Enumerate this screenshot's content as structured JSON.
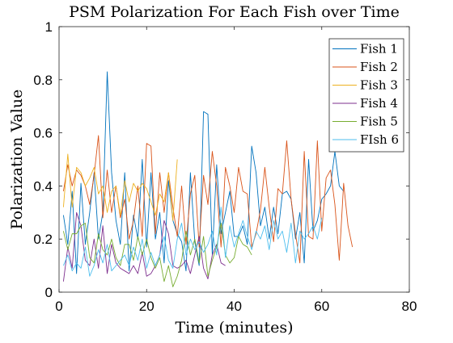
{
  "chart_data": {
    "type": "line",
    "title": "PSM Polarization For Each Fish over Time",
    "xlabel": "Time (minutes)",
    "ylabel": "Polarization Value",
    "xlim": [
      0,
      80
    ],
    "ylim": [
      0,
      1
    ],
    "xticks": [
      0,
      20,
      40,
      60,
      80
    ],
    "xtick_labels": [
      "0",
      "20",
      "40",
      "60",
      "80"
    ],
    "yticks": [
      0,
      0.2,
      0.4,
      0.6,
      0.8,
      1
    ],
    "ytick_labels": [
      "0",
      "0.2",
      "0.4",
      "0.6",
      "0.8",
      "1"
    ],
    "grid": false,
    "legend_position": "top-right",
    "series": [
      {
        "name": "Fish 1",
        "color": "#0072BD",
        "x": [
          1,
          2,
          3,
          4,
          5,
          6,
          7,
          8,
          9,
          10,
          11,
          12,
          13,
          14,
          15,
          16,
          17,
          18,
          19,
          20,
          21,
          22,
          23,
          24,
          25,
          26,
          27,
          28,
          29,
          30,
          31,
          32,
          33,
          34,
          35,
          36,
          37,
          38,
          39,
          40,
          41,
          42,
          43,
          44,
          45,
          46,
          47,
          48,
          49,
          50,
          51,
          52,
          53,
          54,
          55,
          56,
          57,
          58,
          59,
          60,
          61,
          62,
          63,
          64,
          65
        ],
        "values": [
          0.29,
          0.18,
          0.38,
          0.07,
          0.41,
          0.18,
          0.3,
          0.45,
          0.2,
          0.3,
          0.83,
          0.45,
          0.27,
          0.18,
          0.45,
          0.08,
          0.29,
          0.2,
          0.5,
          0.17,
          0.45,
          0.2,
          0.3,
          0.11,
          0.42,
          0.27,
          0.22,
          0.19,
          0.08,
          0.45,
          0.19,
          0.1,
          0.68,
          0.67,
          0.14,
          0.48,
          0.22,
          0.3,
          0.38,
          0.21,
          0.21,
          0.25,
          0.18,
          0.55,
          0.45,
          0.25,
          0.32,
          0.2,
          0.32,
          0.22,
          0.37,
          0.38,
          0.35,
          0.2,
          0.3,
          0.11,
          0.5,
          0.23,
          0.27,
          0.35,
          0.37,
          0.4,
          0.53,
          0.4,
          0.38
        ]
      },
      {
        "name": "Fish 2",
        "color": "#D95319",
        "x": [
          1,
          2,
          3,
          4,
          5,
          6,
          7,
          8,
          9,
          10,
          11,
          12,
          13,
          14,
          15,
          16,
          17,
          18,
          19,
          20,
          21,
          22,
          23,
          24,
          25,
          26,
          27,
          28,
          29,
          30,
          31,
          32,
          33,
          34,
          35,
          36,
          37,
          38,
          39,
          40,
          41,
          42,
          43,
          44,
          45,
          46,
          47,
          48,
          49,
          50,
          51,
          52,
          53,
          54,
          55,
          56,
          57,
          58,
          59,
          60,
          61,
          62,
          63,
          64,
          65,
          66,
          67
        ],
        "values": [
          0.38,
          0.48,
          0.4,
          0.46,
          0.44,
          0.4,
          0.33,
          0.44,
          0.59,
          0.28,
          0.46,
          0.3,
          0.4,
          0.28,
          0.35,
          0.2,
          0.27,
          0.4,
          0.21,
          0.56,
          0.55,
          0.22,
          0.45,
          0.3,
          0.45,
          0.32,
          0.21,
          0.4,
          0.18,
          0.37,
          0.44,
          0.17,
          0.44,
          0.33,
          0.53,
          0.4,
          0.17,
          0.47,
          0.4,
          0.3,
          0.47,
          0.38,
          0.37,
          0.17,
          0.22,
          0.31,
          0.47,
          0.32,
          0.19,
          0.39,
          0.37,
          0.57,
          0.35,
          0.22,
          0.11,
          0.53,
          0.21,
          0.2,
          0.57,
          0.23,
          0.43,
          0.46,
          0.33,
          0.12,
          0.41,
          0.25,
          0.17
        ]
      },
      {
        "name": "Fish 3",
        "color": "#EDB120",
        "x": [
          1,
          2,
          3,
          4,
          5,
          6,
          7,
          8,
          9,
          10,
          11,
          12,
          13,
          14,
          15,
          16,
          17,
          18,
          19,
          20,
          21,
          22,
          23,
          24,
          25,
          26,
          27
        ],
        "values": [
          0.32,
          0.52,
          0.32,
          0.47,
          0.45,
          0.4,
          0.43,
          0.47,
          0.37,
          0.4,
          0.3,
          0.38,
          0.4,
          0.29,
          0.42,
          0.34,
          0.41,
          0.38,
          0.41,
          0.39,
          0.34,
          0.29,
          0.37,
          0.34,
          0.45,
          0.27,
          0.5
        ]
      },
      {
        "name": "Fish 4",
        "color": "#7E2F8E",
        "x": [
          1,
          2,
          3,
          4,
          5,
          6,
          7,
          8,
          9,
          10,
          11,
          12,
          13,
          14,
          15,
          16,
          17,
          18,
          19,
          20,
          21,
          22,
          23,
          24,
          25,
          26,
          27,
          28,
          29,
          30,
          31,
          32,
          33,
          34,
          35,
          36,
          37,
          38
        ],
        "values": [
          0.04,
          0.17,
          0.09,
          0.3,
          0.25,
          0.12,
          0.1,
          0.2,
          0.09,
          0.25,
          0.07,
          0.18,
          0.11,
          0.09,
          0.08,
          0.07,
          0.1,
          0.07,
          0.15,
          0.06,
          0.07,
          0.1,
          0.14,
          0.27,
          0.22,
          0.1,
          0.09,
          0.1,
          0.12,
          0.07,
          0.14,
          0.21,
          0.09,
          0.05,
          0.14,
          0.18,
          0.11,
          0.1
        ]
      },
      {
        "name": "Fish 5",
        "color": "#77AC30",
        "x": [
          1,
          2,
          3,
          4,
          5,
          6,
          7,
          8,
          9,
          10,
          11,
          12,
          13,
          14,
          15,
          16,
          17,
          18,
          19,
          20,
          21,
          22,
          23,
          24,
          25,
          26,
          27,
          28,
          29,
          30,
          31,
          32,
          33,
          34,
          35,
          36,
          37,
          38,
          39,
          40,
          41,
          42,
          43,
          44
        ],
        "values": [
          0.23,
          0.16,
          0.22,
          0.22,
          0.25,
          0.26,
          0.13,
          0.11,
          0.22,
          0.16,
          0.14,
          0.2,
          0.13,
          0.1,
          0.18,
          0.18,
          0.12,
          0.21,
          0.14,
          0.2,
          0.13,
          0.09,
          0.13,
          0.04,
          0.1,
          0.02,
          0.06,
          0.12,
          0.23,
          0.14,
          0.2,
          0.11,
          0.21,
          0.06,
          0.12,
          0.17,
          0.26,
          0.14,
          0.11,
          0.13,
          0.21,
          0.18,
          0.17,
          0.14
        ]
      },
      {
        "name": "FIsh 6",
        "color": "#4DBEEE",
        "x": [
          1,
          2,
          3,
          4,
          5,
          6,
          7,
          8,
          9,
          10,
          11,
          12,
          13,
          14,
          15,
          16,
          17,
          18,
          19,
          20,
          21,
          22,
          23,
          24,
          25,
          26,
          27,
          28,
          29,
          30,
          31,
          32,
          33,
          34,
          35,
          36,
          37,
          38,
          39,
          40,
          41,
          42,
          43,
          44,
          45,
          46,
          47,
          48,
          49,
          50,
          51,
          52,
          53,
          54,
          55,
          56,
          57,
          58,
          59,
          60
        ],
        "values": [
          0.1,
          0.14,
          0.08,
          0.11,
          0.09,
          0.17,
          0.06,
          0.1,
          0.16,
          0.11,
          0.18,
          0.08,
          0.1,
          0.12,
          0.14,
          0.1,
          0.17,
          0.12,
          0.2,
          0.09,
          0.15,
          0.1,
          0.14,
          0.21,
          0.12,
          0.09,
          0.2,
          0.26,
          0.14,
          0.2,
          0.16,
          0.19,
          0.15,
          0.18,
          0.23,
          0.14,
          0.32,
          0.13,
          0.25,
          0.17,
          0.22,
          0.27,
          0.21,
          0.16,
          0.23,
          0.2,
          0.25,
          0.16,
          0.27,
          0.2,
          0.23,
          0.15,
          0.26,
          0.11,
          0.23,
          0.2,
          0.22,
          0.25,
          0.2,
          0.28
        ]
      }
    ]
  }
}
